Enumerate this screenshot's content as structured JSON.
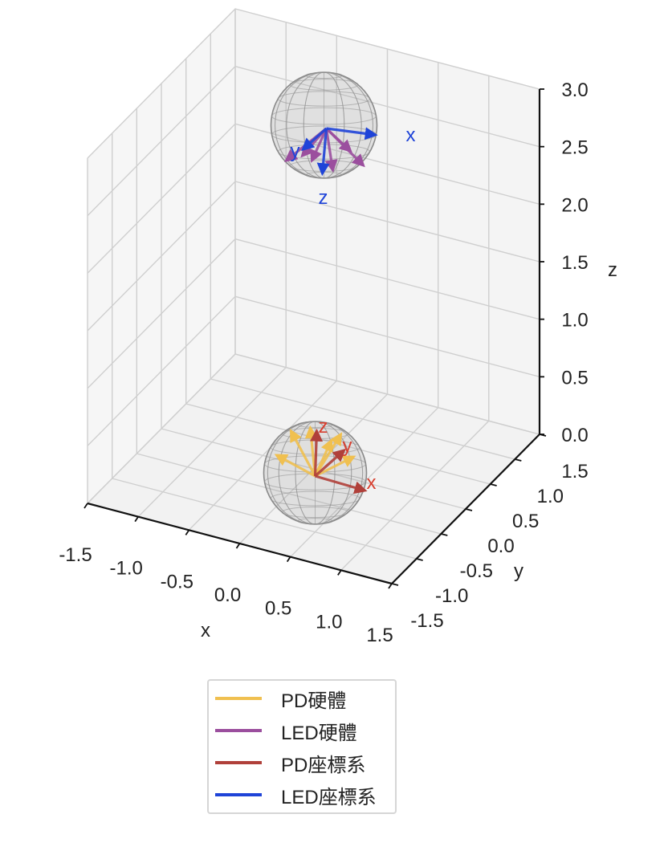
{
  "chart_data": {
    "type": "scatter",
    "title": "",
    "xlabel": "x",
    "ylabel": "y",
    "zlabel": "z",
    "xlim": [
      -1.5,
      1.5
    ],
    "ylim": [
      -1.5,
      1.5
    ],
    "zlim": [
      0.0,
      3.0
    ],
    "xticks": [
      "-1.5",
      "-1.0",
      "-0.5",
      "0.0",
      "0.5",
      "1.0",
      "1.5"
    ],
    "yticks": [
      "-1.5",
      "-1.0",
      "-0.5",
      "0.0",
      "0.5",
      "1.0",
      "1.5"
    ],
    "zticks": [
      "0.0",
      "0.5",
      "1.0",
      "1.5",
      "2.0",
      "2.5",
      "3.0"
    ],
    "grid": true,
    "legend_position": "below",
    "series": [
      {
        "name": "PD硬體",
        "color": "#f0c050"
      },
      {
        "name": "LED硬體",
        "color": "#9b4f9e"
      },
      {
        "name": "PD座標系",
        "color": "#b0403a"
      },
      {
        "name": "LED座標系",
        "color": "#1f44d8"
      }
    ],
    "objects": [
      {
        "id": "pd",
        "center": [
          0,
          0,
          0
        ],
        "frame_labels": [
          "x",
          "y",
          "z"
        ],
        "frame_color": "#d84030"
      },
      {
        "id": "led",
        "center": [
          0,
          0,
          3
        ],
        "frame_labels": [
          "x",
          "y",
          "z"
        ],
        "frame_color": "#1f44d8"
      }
    ]
  }
}
